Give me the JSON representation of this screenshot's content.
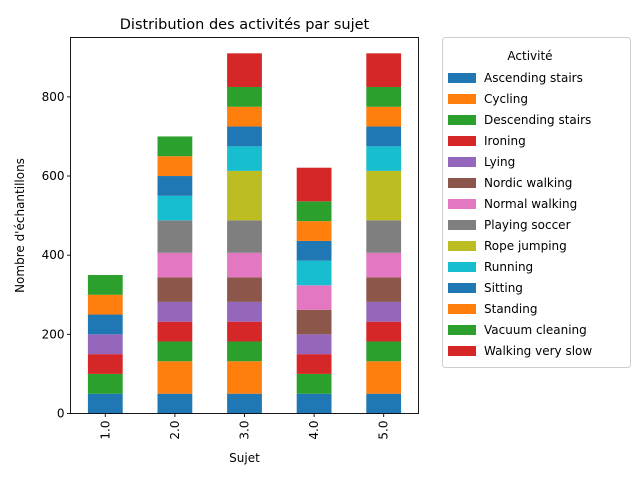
{
  "chart_data": {
    "type": "bar",
    "stacked": true,
    "title": "Distribution des activités par sujet",
    "xlabel": "Sujet",
    "ylabel": "Nombre d'échantillons",
    "categories": [
      "1.0",
      "2.0",
      "3.0",
      "4.0",
      "5.0"
    ],
    "ylim": [
      0,
      950
    ],
    "yticks": [
      0,
      200,
      400,
      600,
      800
    ],
    "legend_title": "Activité",
    "legend_position": "outside-right",
    "series": [
      {
        "name": "Ascending stairs",
        "color": "#1f77b4",
        "values": [
          50,
          50,
          50,
          50,
          50
        ]
      },
      {
        "name": "Cycling",
        "color": "#ff7f0e",
        "values": [
          0,
          82,
          82,
          0,
          82
        ]
      },
      {
        "name": "Descending stairs",
        "color": "#2ca02c",
        "values": [
          50,
          50,
          50,
          50,
          50
        ]
      },
      {
        "name": "Ironing",
        "color": "#d62728",
        "values": [
          50,
          50,
          50,
          50,
          50
        ]
      },
      {
        "name": "Lying",
        "color": "#9467bd",
        "values": [
          50,
          50,
          50,
          50,
          50
        ]
      },
      {
        "name": "Nordic walking",
        "color": "#8c564b",
        "values": [
          0,
          62,
          62,
          62,
          62
        ]
      },
      {
        "name": "Normal walking",
        "color": "#e377c2",
        "values": [
          0,
          62,
          62,
          62,
          62
        ]
      },
      {
        "name": "Playing soccer",
        "color": "#7f7f7f",
        "values": [
          0,
          82,
          82,
          0,
          82
        ]
      },
      {
        "name": "Rope jumping",
        "color": "#bcbd22",
        "values": [
          0,
          0,
          125,
          0,
          125
        ]
      },
      {
        "name": "Running",
        "color": "#17becf",
        "values": [
          0,
          62,
          62,
          62,
          62
        ]
      },
      {
        "name": "Sitting",
        "color": "#1f77b4",
        "values": [
          50,
          50,
          50,
          50,
          50
        ]
      },
      {
        "name": "Standing",
        "color": "#ff7f0e",
        "values": [
          50,
          50,
          50,
          50,
          50
        ]
      },
      {
        "name": "Vacuum cleaning",
        "color": "#2ca02c",
        "values": [
          50,
          50,
          50,
          50,
          50
        ]
      },
      {
        "name": "Walking very slow",
        "color": "#d62728",
        "values": [
          0,
          0,
          85,
          85,
          85
        ]
      }
    ]
  }
}
